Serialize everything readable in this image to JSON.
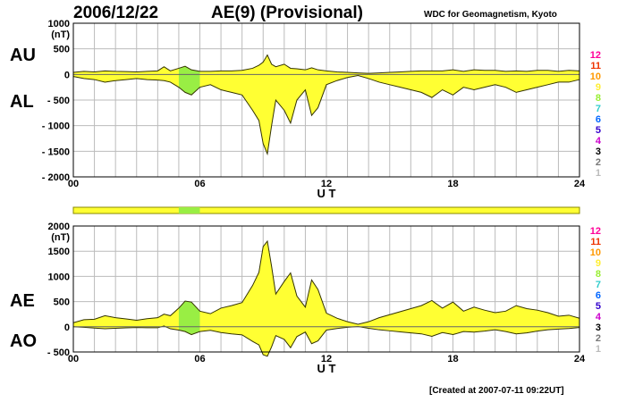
{
  "header": {
    "date": "2006/12/22",
    "title": "AE(9)  (Provisional)",
    "source": "WDC for Geomagnetism, Kyoto",
    "created": "[Created at 2007-07-11 09:22UT]"
  },
  "colors": {
    "fill": "#ffff33",
    "highlight": "#99ee44",
    "line": "#333300",
    "grid": "#bbbbbb",
    "qdc_bar": "#ffff33",
    "qdc_bar_border": "#888800"
  },
  "station_scale": [
    {
      "label": "12",
      "color": "#ff0099"
    },
    {
      "label": "11",
      "color": "#ee3300"
    },
    {
      "label": "10",
      "color": "#ff9900"
    },
    {
      "label": "9",
      "color": "#ffee33"
    },
    {
      "label": "8",
      "color": "#99ee33"
    },
    {
      "label": "7",
      "color": "#33cccc"
    },
    {
      "label": "6",
      "color": "#0066ff"
    },
    {
      "label": "5",
      "color": "#3300cc"
    },
    {
      "label": "4",
      "color": "#cc00cc"
    },
    {
      "label": "3",
      "color": "#000000"
    },
    {
      "label": "2",
      "color": "#777777"
    },
    {
      "label": "1",
      "color": "#bbbbbb"
    }
  ],
  "chart_data": [
    {
      "type": "area",
      "title": "",
      "xlabel": "U T",
      "ylabel": "(nT)",
      "panel_labels": {
        "upper": "AU",
        "lower": "AL"
      },
      "xlim": [
        0,
        24
      ],
      "ylim": [
        -2000,
        1000
      ],
      "xticks": [
        0,
        6,
        12,
        18,
        24
      ],
      "xtick_labels": [
        "00",
        "06",
        "12",
        "18",
        "24"
      ],
      "yticks": [
        1000,
        500,
        0,
        -500,
        -1000,
        -1500,
        -2000
      ],
      "ytick_labels": [
        "1000",
        "500",
        "0",
        "- 500",
        "- 1000",
        "- 1500",
        "- 2000"
      ],
      "grid": true,
      "highlight_range": [
        5.0,
        6.0
      ],
      "series": [
        {
          "name": "AU",
          "x": [
            0,
            0.5,
            1,
            1.5,
            2,
            2.5,
            3,
            3.5,
            4,
            4.3,
            4.6,
            5,
            5.3,
            5.6,
            6,
            6.5,
            7,
            7.5,
            8,
            8.5,
            8.8,
            9,
            9.2,
            9.4,
            9.6,
            10,
            10.3,
            10.6,
            11,
            11.3,
            11.6,
            12,
            12.5,
            13,
            13.5,
            14,
            14.5,
            15,
            15.5,
            16,
            16.5,
            17,
            17.5,
            18,
            18.5,
            19,
            19.5,
            20,
            20.5,
            21,
            21.5,
            22,
            22.5,
            23,
            23.5,
            24
          ],
          "y": [
            40,
            60,
            50,
            70,
            60,
            55,
            50,
            60,
            70,
            150,
            70,
            120,
            160,
            90,
            60,
            60,
            70,
            70,
            80,
            120,
            180,
            240,
            380,
            200,
            150,
            200,
            120,
            110,
            90,
            130,
            90,
            70,
            50,
            40,
            30,
            20,
            30,
            40,
            50,
            60,
            70,
            70,
            70,
            90,
            60,
            90,
            80,
            80,
            60,
            70,
            60,
            80,
            80,
            60,
            80,
            70
          ]
        },
        {
          "name": "AL",
          "x": [
            0,
            0.5,
            1,
            1.5,
            2,
            2.5,
            3,
            3.5,
            4,
            4.3,
            4.6,
            5,
            5.3,
            5.6,
            6,
            6.5,
            7,
            7.5,
            8,
            8.5,
            8.8,
            9,
            9.2,
            9.4,
            9.6,
            10,
            10.3,
            10.6,
            11,
            11.3,
            11.6,
            12,
            12.5,
            13,
            13.5,
            14,
            14.5,
            15,
            15.5,
            16,
            16.5,
            17,
            17.5,
            18,
            18.5,
            19,
            19.5,
            20,
            20.5,
            21,
            21.5,
            22,
            22.5,
            23,
            23.5,
            24
          ],
          "y": [
            -40,
            -80,
            -100,
            -150,
            -120,
            -100,
            -80,
            -100,
            -110,
            -120,
            -150,
            -250,
            -350,
            -400,
            -250,
            -200,
            -300,
            -350,
            -400,
            -700,
            -900,
            -1350,
            -1550,
            -1000,
            -500,
            -700,
            -950,
            -500,
            -300,
            -800,
            -650,
            -200,
            -120,
            -60,
            -20,
            -80,
            -150,
            -200,
            -250,
            -300,
            -350,
            -450,
            -300,
            -400,
            -250,
            -300,
            -250,
            -200,
            -250,
            -350,
            -300,
            -250,
            -200,
            -150,
            -150,
            -100
          ]
        }
      ]
    },
    {
      "type": "area",
      "title": "",
      "xlabel": "U T",
      "ylabel": "(nT)",
      "panel_labels": {
        "upper": "AE",
        "lower": "AO"
      },
      "xlim": [
        0,
        24
      ],
      "ylim": [
        -500,
        2000
      ],
      "xticks": [
        0,
        6,
        12,
        18,
        24
      ],
      "xtick_labels": [
        "00",
        "06",
        "12",
        "18",
        "24"
      ],
      "yticks": [
        2000,
        1500,
        1000,
        500,
        0,
        -500
      ],
      "ytick_labels": [
        "2000",
        "1500",
        "1000",
        "500",
        "0",
        "- 500"
      ],
      "grid": true,
      "highlight_range": [
        5.0,
        6.0
      ],
      "series": [
        {
          "name": "AE",
          "x": [
            0,
            0.5,
            1,
            1.5,
            2,
            2.5,
            3,
            3.5,
            4,
            4.3,
            4.6,
            5,
            5.3,
            5.6,
            6,
            6.5,
            7,
            7.5,
            8,
            8.5,
            8.8,
            9,
            9.2,
            9.4,
            9.6,
            10,
            10.3,
            10.6,
            11,
            11.3,
            11.6,
            12,
            12.5,
            13,
            13.5,
            14,
            14.5,
            15,
            15.5,
            16,
            16.5,
            17,
            17.5,
            18,
            18.5,
            19,
            19.5,
            20,
            20.5,
            21,
            21.5,
            22,
            22.5,
            23,
            23.5,
            24
          ],
          "y": [
            80,
            140,
            150,
            220,
            180,
            155,
            130,
            160,
            180,
            250,
            220,
            370,
            510,
            490,
            310,
            260,
            370,
            420,
            480,
            820,
            1080,
            1590,
            1700,
            1200,
            650,
            900,
            1070,
            610,
            390,
            930,
            740,
            270,
            170,
            100,
            50,
            100,
            180,
            240,
            300,
            360,
            420,
            520,
            370,
            490,
            310,
            390,
            330,
            280,
            310,
            420,
            360,
            330,
            280,
            210,
            230,
            170
          ]
        },
        {
          "name": "AO",
          "x": [
            0,
            0.5,
            1,
            1.5,
            2,
            2.5,
            3,
            3.5,
            4,
            4.3,
            4.6,
            5,
            5.3,
            5.6,
            6,
            6.5,
            7,
            7.5,
            8,
            8.5,
            8.8,
            9,
            9.2,
            9.4,
            9.6,
            10,
            10.3,
            10.6,
            11,
            11.3,
            11.6,
            12,
            12.5,
            13,
            13.5,
            14,
            14.5,
            15,
            15.5,
            16,
            16.5,
            17,
            17.5,
            18,
            18.5,
            19,
            19.5,
            20,
            20.5,
            21,
            21.5,
            22,
            22.5,
            23,
            23.5,
            24
          ],
          "y": [
            0,
            -10,
            -25,
            -40,
            -30,
            -22,
            -15,
            -20,
            -20,
            15,
            -40,
            -65,
            -95,
            -155,
            -95,
            -70,
            -115,
            -140,
            -160,
            -290,
            -360,
            -555,
            -585,
            -400,
            -175,
            -250,
            -415,
            -195,
            -105,
            -335,
            -280,
            -65,
            -35,
            -10,
            5,
            -30,
            -60,
            -80,
            -100,
            -120,
            -140,
            -190,
            -115,
            -155,
            -95,
            -105,
            -85,
            -60,
            -95,
            -140,
            -120,
            -85,
            -60,
            -45,
            -35,
            -15
          ]
        }
      ]
    }
  ]
}
